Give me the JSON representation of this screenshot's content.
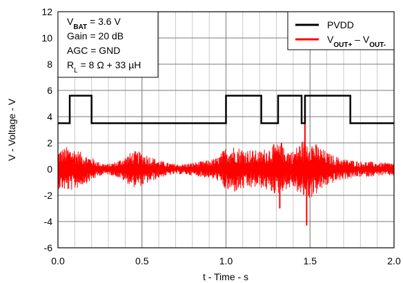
{
  "chart_data": {
    "type": "line",
    "xlabel": "t - Time - s",
    "ylabel": "V - Voltage - V",
    "xlim": [
      0,
      2
    ],
    "ylim": [
      -6,
      12
    ],
    "x_ticks": [
      0.0,
      0.5,
      1.0,
      1.5,
      2.0
    ],
    "x_tick_labels": [
      "0.0",
      "0.5",
      "1.0",
      "1.5",
      "2.0"
    ],
    "y_ticks": [
      -6,
      -4,
      -2,
      0,
      2,
      4,
      6,
      8,
      10,
      12
    ],
    "y_tick_labels": [
      "-6",
      "-4",
      "-2",
      "0",
      "2",
      "4",
      "6",
      "8",
      "10",
      "12"
    ],
    "x_minor_step": 0.1,
    "grid": true,
    "legend_position": "top-right",
    "annotation": {
      "lines": [
        {
          "main": "V",
          "sub": "BAT",
          "rest": " = 3.6 V"
        },
        {
          "main": "Gain = 20 dB",
          "sub": "",
          "rest": ""
        },
        {
          "main": "AGC = GND",
          "sub": "",
          "rest": ""
        },
        {
          "main": "R",
          "sub": "L",
          "rest": " = 8 Ω + 33 µH"
        }
      ]
    },
    "series": [
      {
        "name": "PVDD",
        "legend_main": "PVDD",
        "color": "#000000",
        "kind": "step",
        "x": [
          0.0,
          0.07,
          0.07,
          0.2,
          0.2,
          1.0,
          1.0,
          1.21,
          1.21,
          1.31,
          1.31,
          1.45,
          1.45,
          1.47,
          1.47,
          1.74,
          1.74,
          2.0
        ],
        "y": [
          3.5,
          3.5,
          5.6,
          5.6,
          3.5,
          3.5,
          5.6,
          5.6,
          3.5,
          3.5,
          5.6,
          5.6,
          3.5,
          3.5,
          5.6,
          5.6,
          3.5,
          3.5
        ]
      },
      {
        "name": "VOUT+ – VOUT-",
        "legend_parts": [
          {
            "main": "V",
            "sub": "OUT+"
          },
          {
            "main": " – V",
            "sub": "OUT-"
          }
        ],
        "color": "#ff0000",
        "kind": "noise",
        "envelope_x": [
          0.0,
          0.05,
          0.1,
          0.15,
          0.2,
          0.25,
          0.3,
          0.35,
          0.4,
          0.45,
          0.5,
          0.55,
          0.6,
          0.65,
          0.7,
          0.75,
          0.8,
          0.85,
          0.9,
          0.95,
          1.0,
          1.05,
          1.1,
          1.15,
          1.2,
          1.25,
          1.3,
          1.35,
          1.4,
          1.45,
          1.5,
          1.55,
          1.6,
          1.65,
          1.7,
          1.75,
          1.8,
          1.85,
          1.9,
          1.95,
          2.0
        ],
        "envelope_amp": [
          1.5,
          1.7,
          1.6,
          1.2,
          0.9,
          0.5,
          0.4,
          0.6,
          1.0,
          1.4,
          1.3,
          1.0,
          0.7,
          0.5,
          0.4,
          0.4,
          0.5,
          0.6,
          0.7,
          0.9,
          1.7,
          1.8,
          1.6,
          1.5,
          1.4,
          1.7,
          2.0,
          1.6,
          1.4,
          2.2,
          2.3,
          1.8,
          1.3,
          1.0,
          0.8,
          0.7,
          0.6,
          0.6,
          0.5,
          0.5,
          0.5
        ],
        "spikes": [
          {
            "x": 1.32,
            "y": -3.0
          },
          {
            "x": 1.33,
            "y": 2.0
          },
          {
            "x": 1.47,
            "y": 3.6
          },
          {
            "x": 1.48,
            "y": -4.3
          }
        ]
      }
    ]
  }
}
